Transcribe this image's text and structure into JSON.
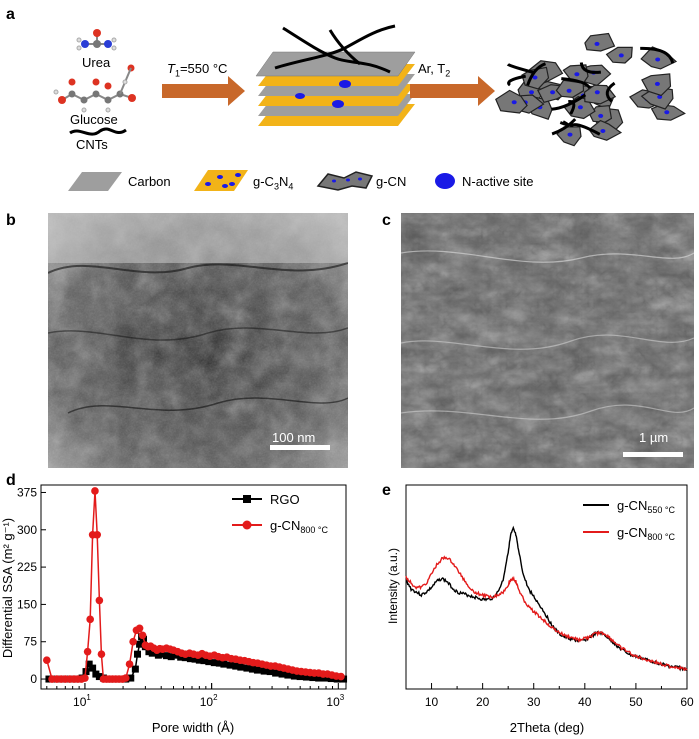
{
  "panels": {
    "a": "a",
    "b": "b",
    "c": "c",
    "d": "d",
    "e": "e"
  },
  "schematic": {
    "urea": "Urea",
    "glucose": "Glucose",
    "cnts": "CNTs",
    "step1_prefix": "T",
    "step1_sub": "1",
    "step1_suffix": "=550 °C",
    "step2_prefix": "Ar, T",
    "step2_sub": "2",
    "legend": {
      "carbon": "Carbon",
      "gc3n4_prefix": "g-C",
      "gc3n4_sub1": "3",
      "gc3n4_mid": "N",
      "gc3n4_sub2": "4",
      "gcn": "g-CN",
      "nsite": "N-active site"
    }
  },
  "micrographs": {
    "b_scale": "100 nm",
    "c_scale": "1 µm"
  },
  "colors": {
    "arrow": "#c8682a",
    "carbon": "#9e9e9e",
    "gc3n4": "#f2b318",
    "nsite": "#1a1ae6",
    "rgo": "#000000",
    "red": "#e31b1b"
  },
  "chart_data": [
    {
      "type": "line",
      "panel": "d",
      "xlabel": "Pore width (Å)",
      "ylabel": "Differential SSA (m² g⁻¹)",
      "xscale": "log",
      "xlim": [
        4.5,
        1150
      ],
      "ylim": [
        -20,
        390
      ],
      "yticks": [
        0,
        75,
        150,
        225,
        300,
        375
      ],
      "xticks": [
        "10",
        "10",
        "10"
      ],
      "xtick_exponents": [
        "1",
        "2",
        "3"
      ],
      "xtick_values": [
        10,
        100,
        1000
      ],
      "legend_position": "top-right",
      "series": [
        {
          "name": "RGO",
          "color": "#000000",
          "marker": "square",
          "x": [
            5.2,
            5.8,
            6.5,
            7.2,
            8,
            8.8,
            9.5,
            10.2,
            10.8,
            11.5,
            12.2,
            13,
            14,
            15.5,
            17,
            19,
            21,
            23,
            25,
            26,
            27,
            28,
            29,
            30,
            32,
            34,
            36,
            38,
            40,
            44,
            48,
            52,
            57,
            62,
            68,
            74,
            80,
            87,
            95,
            105,
            115,
            125,
            140,
            155,
            170,
            190,
            210,
            230,
            260,
            290,
            320,
            360,
            400,
            450,
            500,
            560,
            630,
            700,
            790,
            880,
            980,
            1100
          ],
          "y": [
            0,
            0,
            0,
            0,
            0,
            0,
            2,
            15,
            30,
            22,
            10,
            5,
            2,
            0,
            0,
            0,
            0,
            2,
            20,
            50,
            70,
            85,
            80,
            65,
            55,
            52,
            55,
            48,
            50,
            47,
            45,
            48,
            44,
            43,
            41,
            40,
            38,
            37,
            35,
            33,
            32,
            30,
            28,
            26,
            24,
            22,
            20,
            18,
            16,
            15,
            12,
            10,
            8,
            6,
            5,
            4,
            3,
            2,
            2,
            1,
            0,
            0
          ]
        },
        {
          "name": "g-CN",
          "name_sub": "800 °C",
          "color": "#e31b1b",
          "marker": "circle",
          "x": [
            5,
            5.5,
            6,
            6.5,
            7,
            7.6,
            8.2,
            8.8,
            9.4,
            10,
            10.5,
            11,
            11.5,
            12,
            12.5,
            13,
            13.5,
            14,
            14.8,
            15.6,
            16.5,
            17.5,
            18.6,
            19.8,
            21,
            22.5,
            24,
            25.5,
            27,
            28.5,
            30,
            31.5,
            33,
            35,
            37,
            39,
            41,
            44,
            47,
            50,
            54,
            58,
            62,
            67,
            72,
            78,
            84,
            90,
            97,
            105,
            113,
            122,
            132,
            143,
            155,
            168,
            182,
            197,
            213,
            231,
            250,
            271,
            293,
            317,
            343,
            371,
            402,
            435,
            471,
            510,
            552,
            598,
            647,
            701,
            759,
            822,
            890,
            964,
            1050
          ],
          "y": [
            38,
            0,
            0,
            0,
            0,
            0,
            0,
            0,
            0,
            2,
            55,
            120,
            290,
            378,
            290,
            158,
            50,
            0,
            0,
            0,
            0,
            0,
            0,
            0,
            2,
            30,
            75,
            98,
            102,
            88,
            68,
            65,
            66,
            62,
            58,
            61,
            60,
            62,
            60,
            58,
            55,
            52,
            50,
            52,
            50,
            48,
            51,
            48,
            46,
            48,
            45,
            43,
            44,
            41,
            40,
            38,
            37,
            35,
            33,
            32,
            30,
            28,
            26,
            26,
            24,
            22,
            20,
            18,
            16,
            15,
            14,
            13,
            12,
            12,
            10,
            10,
            8,
            6,
            5
          ]
        }
      ]
    },
    {
      "type": "line",
      "panel": "e",
      "xlabel": "2Theta (deg)",
      "ylabel": "Intensity (a.u.)",
      "xlim": [
        5,
        60
      ],
      "xticks": [
        10,
        20,
        30,
        40,
        50,
        60
      ],
      "legend_position": "top-right",
      "series": [
        {
          "name": "g-CN",
          "name_sub": "550 °C",
          "color": "#000000",
          "x": [
            5,
            6,
            7,
            8,
            9,
            10,
            11,
            12,
            13,
            14,
            15,
            16,
            17,
            18,
            19,
            20,
            21,
            22,
            23,
            24,
            25,
            25.5,
            26,
            26.5,
            27,
            28,
            29,
            30,
            31,
            32,
            33,
            34,
            35,
            36,
            37,
            38,
            39,
            40,
            41,
            42,
            43,
            44,
            45,
            46,
            47,
            48,
            49,
            50,
            51,
            52,
            53,
            54,
            55,
            56,
            57,
            58,
            59,
            60
          ],
          "y": [
            0.66,
            0.6,
            0.58,
            0.56,
            0.58,
            0.61,
            0.65,
            0.67,
            0.65,
            0.61,
            0.58,
            0.57,
            0.56,
            0.55,
            0.54,
            0.53,
            0.53,
            0.54,
            0.58,
            0.66,
            0.85,
            0.96,
            1.0,
            0.96,
            0.86,
            0.69,
            0.6,
            0.55,
            0.5,
            0.45,
            0.39,
            0.34,
            0.3,
            0.28,
            0.27,
            0.26,
            0.25,
            0.26,
            0.28,
            0.3,
            0.31,
            0.29,
            0.26,
            0.23,
            0.2,
            0.18,
            0.16,
            0.15,
            0.14,
            0.13,
            0.12,
            0.11,
            0.1,
            0.09,
            0.08,
            0.08,
            0.07,
            0.06
          ]
        },
        {
          "name": "g-CN",
          "name_sub": "800 °C",
          "color": "#e31b1b",
          "x": [
            5,
            6,
            7,
            8,
            9,
            10,
            11,
            12,
            13,
            14,
            15,
            16,
            17,
            18,
            19,
            20,
            21,
            22,
            23,
            24,
            25,
            25.5,
            26,
            26.5,
            27,
            28,
            29,
            30,
            31,
            32,
            33,
            34,
            35,
            36,
            37,
            38,
            39,
            40,
            41,
            42,
            43,
            44,
            45,
            46,
            47,
            48,
            49,
            50,
            51,
            52,
            53,
            54,
            55,
            56,
            57,
            58,
            59,
            60
          ],
          "y": [
            0.68,
            0.64,
            0.61,
            0.61,
            0.64,
            0.7,
            0.76,
            0.8,
            0.81,
            0.78,
            0.73,
            0.68,
            0.63,
            0.59,
            0.57,
            0.56,
            0.55,
            0.55,
            0.56,
            0.58,
            0.63,
            0.66,
            0.67,
            0.65,
            0.6,
            0.53,
            0.48,
            0.45,
            0.42,
            0.39,
            0.36,
            0.33,
            0.31,
            0.29,
            0.28,
            0.27,
            0.26,
            0.27,
            0.28,
            0.3,
            0.31,
            0.3,
            0.27,
            0.24,
            0.21,
            0.19,
            0.17,
            0.15,
            0.14,
            0.13,
            0.12,
            0.11,
            0.1,
            0.09,
            0.08,
            0.08,
            0.07,
            0.06
          ]
        }
      ]
    }
  ]
}
